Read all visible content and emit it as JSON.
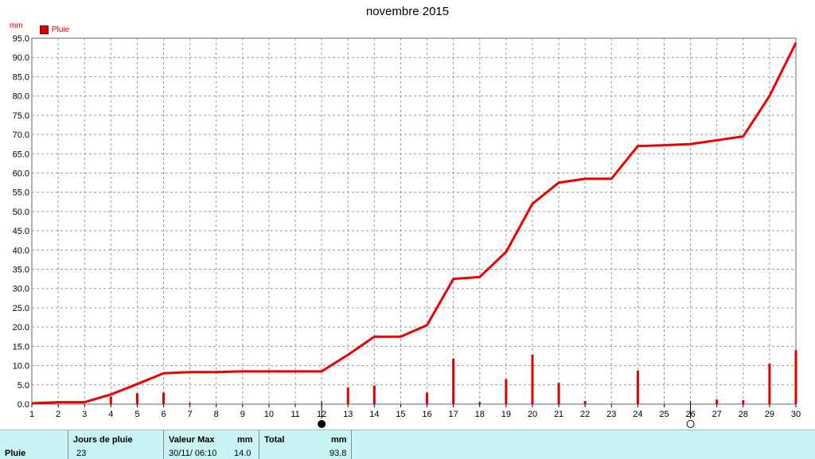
{
  "title": "novembre 2015",
  "unit": "mm",
  "legend_label": "Pluie",
  "colors": {
    "series": "#ee0000",
    "bars": "#dd0000",
    "grid": "#999999"
  },
  "chart_data": {
    "type": "line",
    "title": "novembre 2015",
    "ylabel": "mm",
    "xlim": [
      1,
      30
    ],
    "ylim": [
      0,
      95
    ],
    "grid": true,
    "legend_position": "top-left",
    "x_ticks": [
      "1",
      "2",
      "3",
      "4",
      "5",
      "6",
      "7",
      "8",
      "9",
      "10",
      "11",
      "12",
      "13",
      "14",
      "15",
      "16",
      "17",
      "18",
      "19",
      "20",
      "21",
      "22",
      "23",
      "24",
      "25",
      "26",
      "27",
      "28",
      "29",
      "30"
    ],
    "y_ticks": [
      "0.0",
      "5.0",
      "10.0",
      "15.0",
      "20.0",
      "25.0",
      "30.0",
      "35.0",
      "40.0",
      "45.0",
      "50.0",
      "55.0",
      "60.0",
      "65.0",
      "70.0",
      "75.0",
      "80.0",
      "85.0",
      "90.0",
      "95.0"
    ],
    "series": [
      {
        "name": "Pluie",
        "type": "line",
        "x": [
          1,
          2,
          3,
          4,
          5,
          6,
          7,
          8,
          9,
          10,
          11,
          12,
          13,
          14,
          15,
          16,
          17,
          18,
          19,
          20,
          21,
          22,
          23,
          24,
          25,
          26,
          27,
          28,
          29,
          30
        ],
        "values": [
          0.2,
          0.5,
          0.5,
          2.5,
          5.2,
          8.0,
          8.3,
          8.3,
          8.5,
          8.5,
          8.5,
          8.5,
          12.8,
          17.5,
          17.5,
          20.5,
          32.5,
          33.0,
          39.5,
          52.0,
          57.5,
          58.5,
          58.5,
          67.0,
          67.2,
          67.5,
          68.5,
          69.5,
          80.0,
          93.8
        ]
      },
      {
        "name": "Pluie",
        "type": "bar",
        "x": [
          4,
          5,
          6,
          7,
          13,
          14,
          16,
          17,
          18,
          19,
          20,
          21,
          22,
          24,
          27,
          28,
          29,
          30
        ],
        "values": [
          2.0,
          2.8,
          3.0,
          0.3,
          4.3,
          4.8,
          3.0,
          11.8,
          0.5,
          6.5,
          12.8,
          5.5,
          0.8,
          8.7,
          1.2,
          1.0,
          10.5,
          14.0
        ]
      }
    ]
  },
  "moon_markers": [
    {
      "day": 12,
      "phase": "new-moon-icon"
    },
    {
      "day": 26,
      "phase": "full-moon-icon"
    }
  ],
  "footer": {
    "row_label": "Pluie",
    "jours_label": "Jours de pluie",
    "jours_value": "23",
    "valmax_label": "Valeur Max",
    "valmax_unit": "mm",
    "valmax_date": "30/11/  06:10",
    "valmax_value": "14.0",
    "total_label": "Total",
    "total_unit": "mm",
    "total_value": "93.8"
  }
}
